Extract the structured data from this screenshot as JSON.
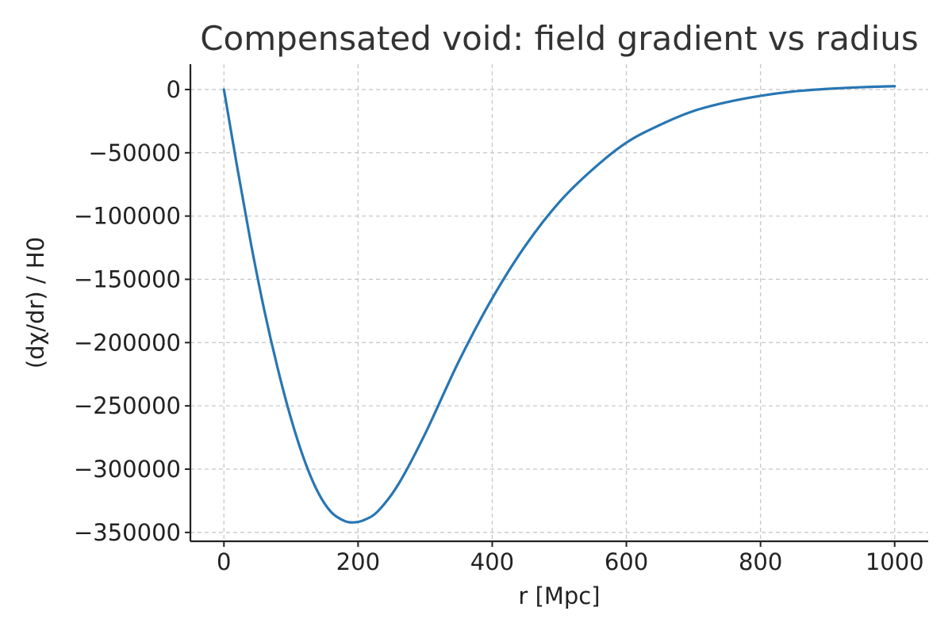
{
  "chart_data": {
    "type": "line",
    "title": "Compensated void: field gradient vs radius",
    "xlabel": "r [Mpc]",
    "ylabel": "(dχ/dr) / H0",
    "xlim": [
      -50,
      1050
    ],
    "ylim": [
      -357000,
      20000
    ],
    "grid": true,
    "x_ticks": [
      0,
      200,
      400,
      600,
      800,
      1000
    ],
    "x_tick_labels": [
      "0",
      "200",
      "400",
      "600",
      "800",
      "1000"
    ],
    "y_ticks": [
      0,
      -50000,
      -100000,
      -150000,
      -200000,
      -250000,
      -300000,
      -350000
    ],
    "y_tick_labels": [
      "0",
      "−50000",
      "−100000",
      "−150000",
      "−200000",
      "−250000",
      "−300000",
      "−350000"
    ],
    "series": [
      {
        "color": "#2776b3",
        "x": [
          0,
          20,
          40,
          60,
          80,
          100,
          120,
          140,
          160,
          180,
          195,
          210,
          230,
          260,
          300,
          350,
          400,
          450,
          500,
          550,
          600,
          650,
          700,
          750,
          800,
          850,
          900,
          950,
          1000
        ],
        "y": [
          0,
          -62000,
          -121000,
          -174000,
          -220000,
          -260000,
          -293000,
          -318000,
          -334000,
          -341000,
          -342000,
          -340000,
          -333000,
          -312000,
          -272000,
          -215000,
          -165000,
          -123000,
          -89000,
          -63000,
          -42000,
          -28000,
          -17000,
          -10000,
          -5000,
          -1500,
          500,
          1800,
          2600
        ]
      }
    ]
  }
}
